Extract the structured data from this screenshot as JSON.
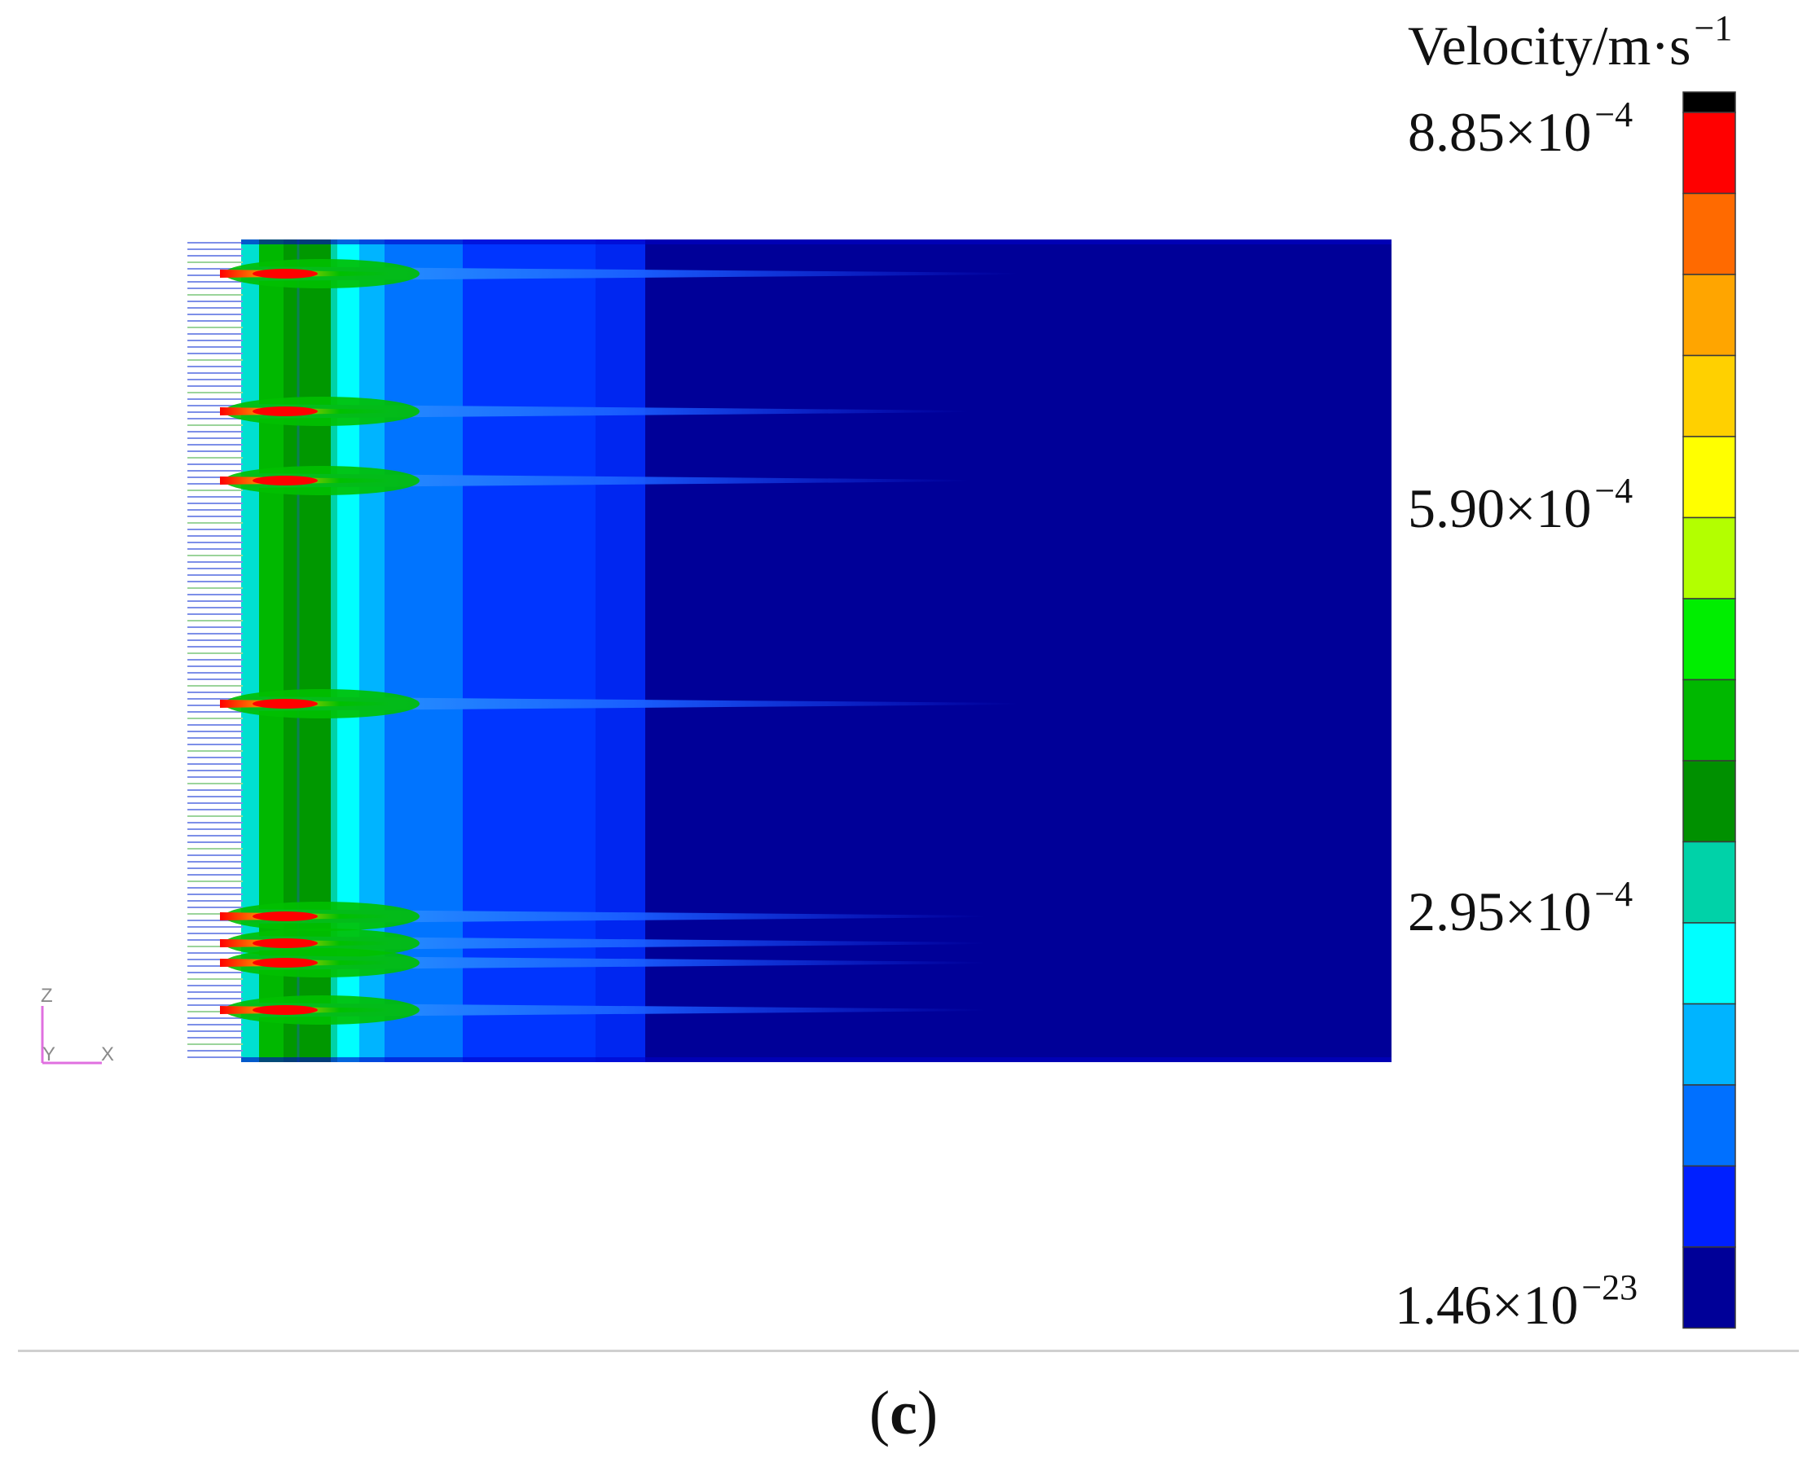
{
  "colorbar": {
    "unit_label_base": "Velocity/m·s",
    "unit_label_exp": "−1",
    "ticks": [
      {
        "mantissa": "8.85×10",
        "exp": "−4",
        "value": 0.000885
      },
      {
        "mantissa": "5.90×10",
        "exp": "−4",
        "value": 0.00059
      },
      {
        "mantissa": "2.95×10",
        "exp": "−4",
        "value": 0.000295
      },
      {
        "mantissa": "1.46×10",
        "exp": "−23",
        "value": 1.46e-23
      }
    ],
    "colors_top_to_bottom": [
      "#000000",
      "#ff0000",
      "#ff6a00",
      "#ffa500",
      "#ffd000",
      "#ffff00",
      "#b3ff00",
      "#00ee00",
      "#00b800",
      "#009000",
      "#00d2a8",
      "#00ffff",
      "#00b4ff",
      "#0070ff",
      "#0020ff",
      "#000098"
    ]
  },
  "axes_triad": {
    "z": "Z",
    "y": "Y",
    "x": "X",
    "color": "#e070e0"
  },
  "panel_label_open": "(",
  "panel_label_letter": "c",
  "panel_label_close": ")"
}
